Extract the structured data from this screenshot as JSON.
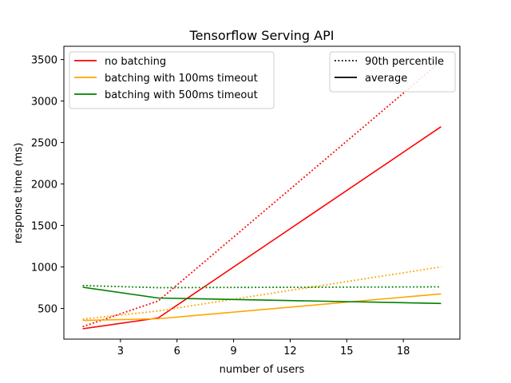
{
  "chart_data": {
    "type": "line",
    "title": "Tensorflow Serving API",
    "xlabel": "number of users",
    "ylabel": "response time (ms)",
    "xlim": [
      0,
      21
    ],
    "ylim": [
      130,
      3660
    ],
    "xticks": [
      3,
      6,
      9,
      12,
      15,
      18
    ],
    "yticks": [
      500,
      1000,
      1500,
      2000,
      2500,
      3000,
      3500
    ],
    "grid": false,
    "series": [
      {
        "name": "no batching",
        "stat": "average",
        "color": "#ff0000",
        "style": "solid",
        "x": [
          1,
          5,
          20
        ],
        "y": [
          255,
          385,
          2690
        ]
      },
      {
        "name": "no batching",
        "stat": "90th percentile",
        "color": "#ff0000",
        "style": "dotted",
        "x": [
          1,
          5,
          20
        ],
        "y": [
          280,
          590,
          3480
        ]
      },
      {
        "name": "batching with 100ms timeout",
        "stat": "average",
        "color": "#ffa500",
        "style": "solid",
        "x": [
          1,
          5,
          20
        ],
        "y": [
          355,
          375,
          675
        ]
      },
      {
        "name": "batching with 100ms timeout",
        "stat": "90th percentile",
        "color": "#ffa500",
        "style": "dotted",
        "x": [
          1,
          5,
          20
        ],
        "y": [
          370,
          470,
          1000
        ]
      },
      {
        "name": "batching with 500ms timeout",
        "stat": "average",
        "color": "#008000",
        "style": "solid",
        "x": [
          1,
          5,
          20
        ],
        "y": [
          755,
          625,
          560
        ]
      },
      {
        "name": "batching with 500ms timeout",
        "stat": "90th percentile",
        "color": "#008000",
        "style": "dotted",
        "x": [
          1,
          5,
          20
        ],
        "y": [
          775,
          750,
          760
        ]
      }
    ],
    "legend_series": {
      "placement": "upper-left",
      "entries": [
        {
          "label": "no batching",
          "color": "#ff0000"
        },
        {
          "label": "batching with 100ms timeout",
          "color": "#ffa500"
        },
        {
          "label": "batching with 500ms timeout",
          "color": "#008000"
        }
      ]
    },
    "legend_style": {
      "placement": "upper-right",
      "entries": [
        {
          "label": "90th percentile",
          "style": "dotted",
          "color": "#000000"
        },
        {
          "label": "average",
          "style": "solid",
          "color": "#000000"
        }
      ]
    }
  }
}
